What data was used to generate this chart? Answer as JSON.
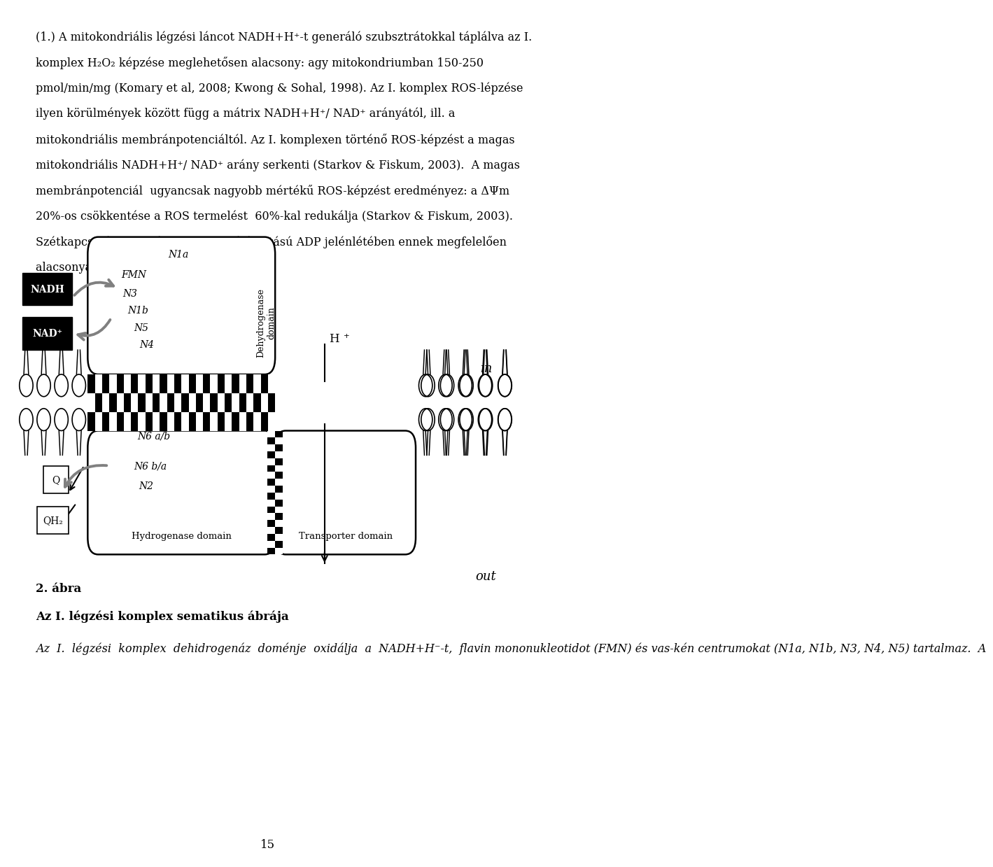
{
  "background_color": "#ffffff",
  "page_width": 9.6,
  "page_height": 15.84,
  "text_color": "#000000",
  "body_font_size": 11.5,
  "caption_label": "2. ábra",
  "caption_title": "Az I. légzési komplex sematikus ábrája",
  "caption_body_italic": "Az  I.  légzési  komplex  dehidrogenáz  doménje  oxidálja  a  NADH+H⁻-t,  flavin mononukleotidot (FMN) és vas-kén centrumokat (N1a, N1b, N3, N4, N5) tartalmaz.  A",
  "page_number": "15"
}
